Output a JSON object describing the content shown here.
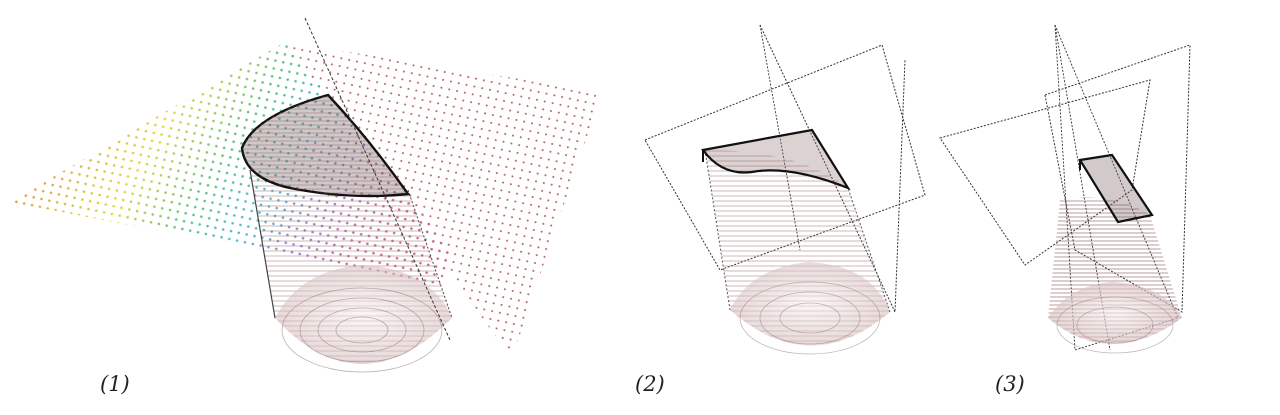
{
  "panels": [
    {
      "label": "(1)"
    },
    {
      "label": "(2)"
    },
    {
      "label": "(3)"
    }
  ],
  "colors": {
    "dot_red": "#b0514c",
    "cylinder_shade": "#9a6e6e",
    "outline": "#111111",
    "wire": "#444444"
  }
}
